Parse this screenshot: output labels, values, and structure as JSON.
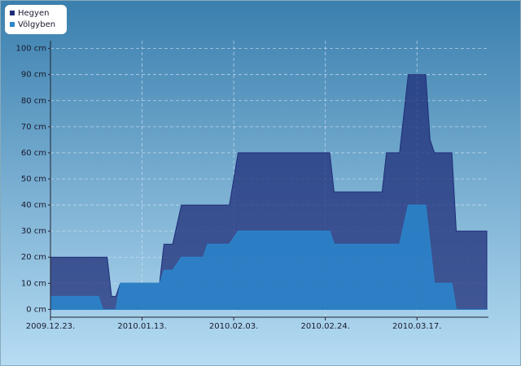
{
  "chart_data": {
    "type": "area",
    "x": [
      "2009-12-23",
      "2010-01-03",
      "2010-01-04",
      "2010-01-05",
      "2010-01-06",
      "2010-01-07",
      "2010-01-08",
      "2010-01-17",
      "2010-01-18",
      "2010-01-20",
      "2010-01-22",
      "2010-01-27",
      "2010-01-28",
      "2010-02-02",
      "2010-02-04",
      "2010-02-25",
      "2010-02-26",
      "2010-03-09",
      "2010-03-10",
      "2010-03-13",
      "2010-03-15",
      "2010-03-19",
      "2010-03-20",
      "2010-03-21",
      "2010-03-25",
      "2010-03-26",
      "2010-04-02"
    ],
    "series": [
      {
        "name": "Hegyen",
        "color": "#1f2d78",
        "values": [
          20,
          20,
          20,
          20,
          5,
          5,
          10,
          10,
          25,
          25,
          40,
          40,
          40,
          40,
          60,
          60,
          45,
          45,
          60,
          60,
          90,
          90,
          65,
          60,
          60,
          30,
          30
        ]
      },
      {
        "name": "Völgyben",
        "color": "#2a86cc",
        "values": [
          5,
          5,
          0,
          0,
          0,
          0,
          10,
          10,
          15,
          15,
          20,
          20,
          25,
          25,
          30,
          30,
          25,
          25,
          25,
          25,
          40,
          40,
          25,
          10,
          10,
          0,
          0
        ]
      }
    ],
    "xlim": [
      "2009-12-23",
      "2010-04-02"
    ],
    "xticks": [
      {
        "value": "2009-12-23",
        "label": "2009.12.23."
      },
      {
        "value": "2010-01-13",
        "label": "2010.01.13."
      },
      {
        "value": "2010-02-03",
        "label": "2010.02.03."
      },
      {
        "value": "2010-02-24",
        "label": "2010.02.24."
      },
      {
        "value": "2010-03-17",
        "label": "2010.03.17."
      }
    ],
    "ylim": [
      -3,
      103
    ],
    "yticks": [
      {
        "value": 0,
        "label": "0 cm"
      },
      {
        "value": 10,
        "label": "10 cm"
      },
      {
        "value": 20,
        "label": "20 cm"
      },
      {
        "value": 30,
        "label": "30 cm"
      },
      {
        "value": 40,
        "label": "40 cm"
      },
      {
        "value": 50,
        "label": "50 cm"
      },
      {
        "value": 60,
        "label": "60 cm"
      },
      {
        "value": 70,
        "label": "70 cm"
      },
      {
        "value": 80,
        "label": "80 cm"
      },
      {
        "value": 90,
        "label": "90 cm"
      },
      {
        "value": 100,
        "label": "100 cm"
      }
    ],
    "grid": true,
    "legend": "top-left"
  }
}
